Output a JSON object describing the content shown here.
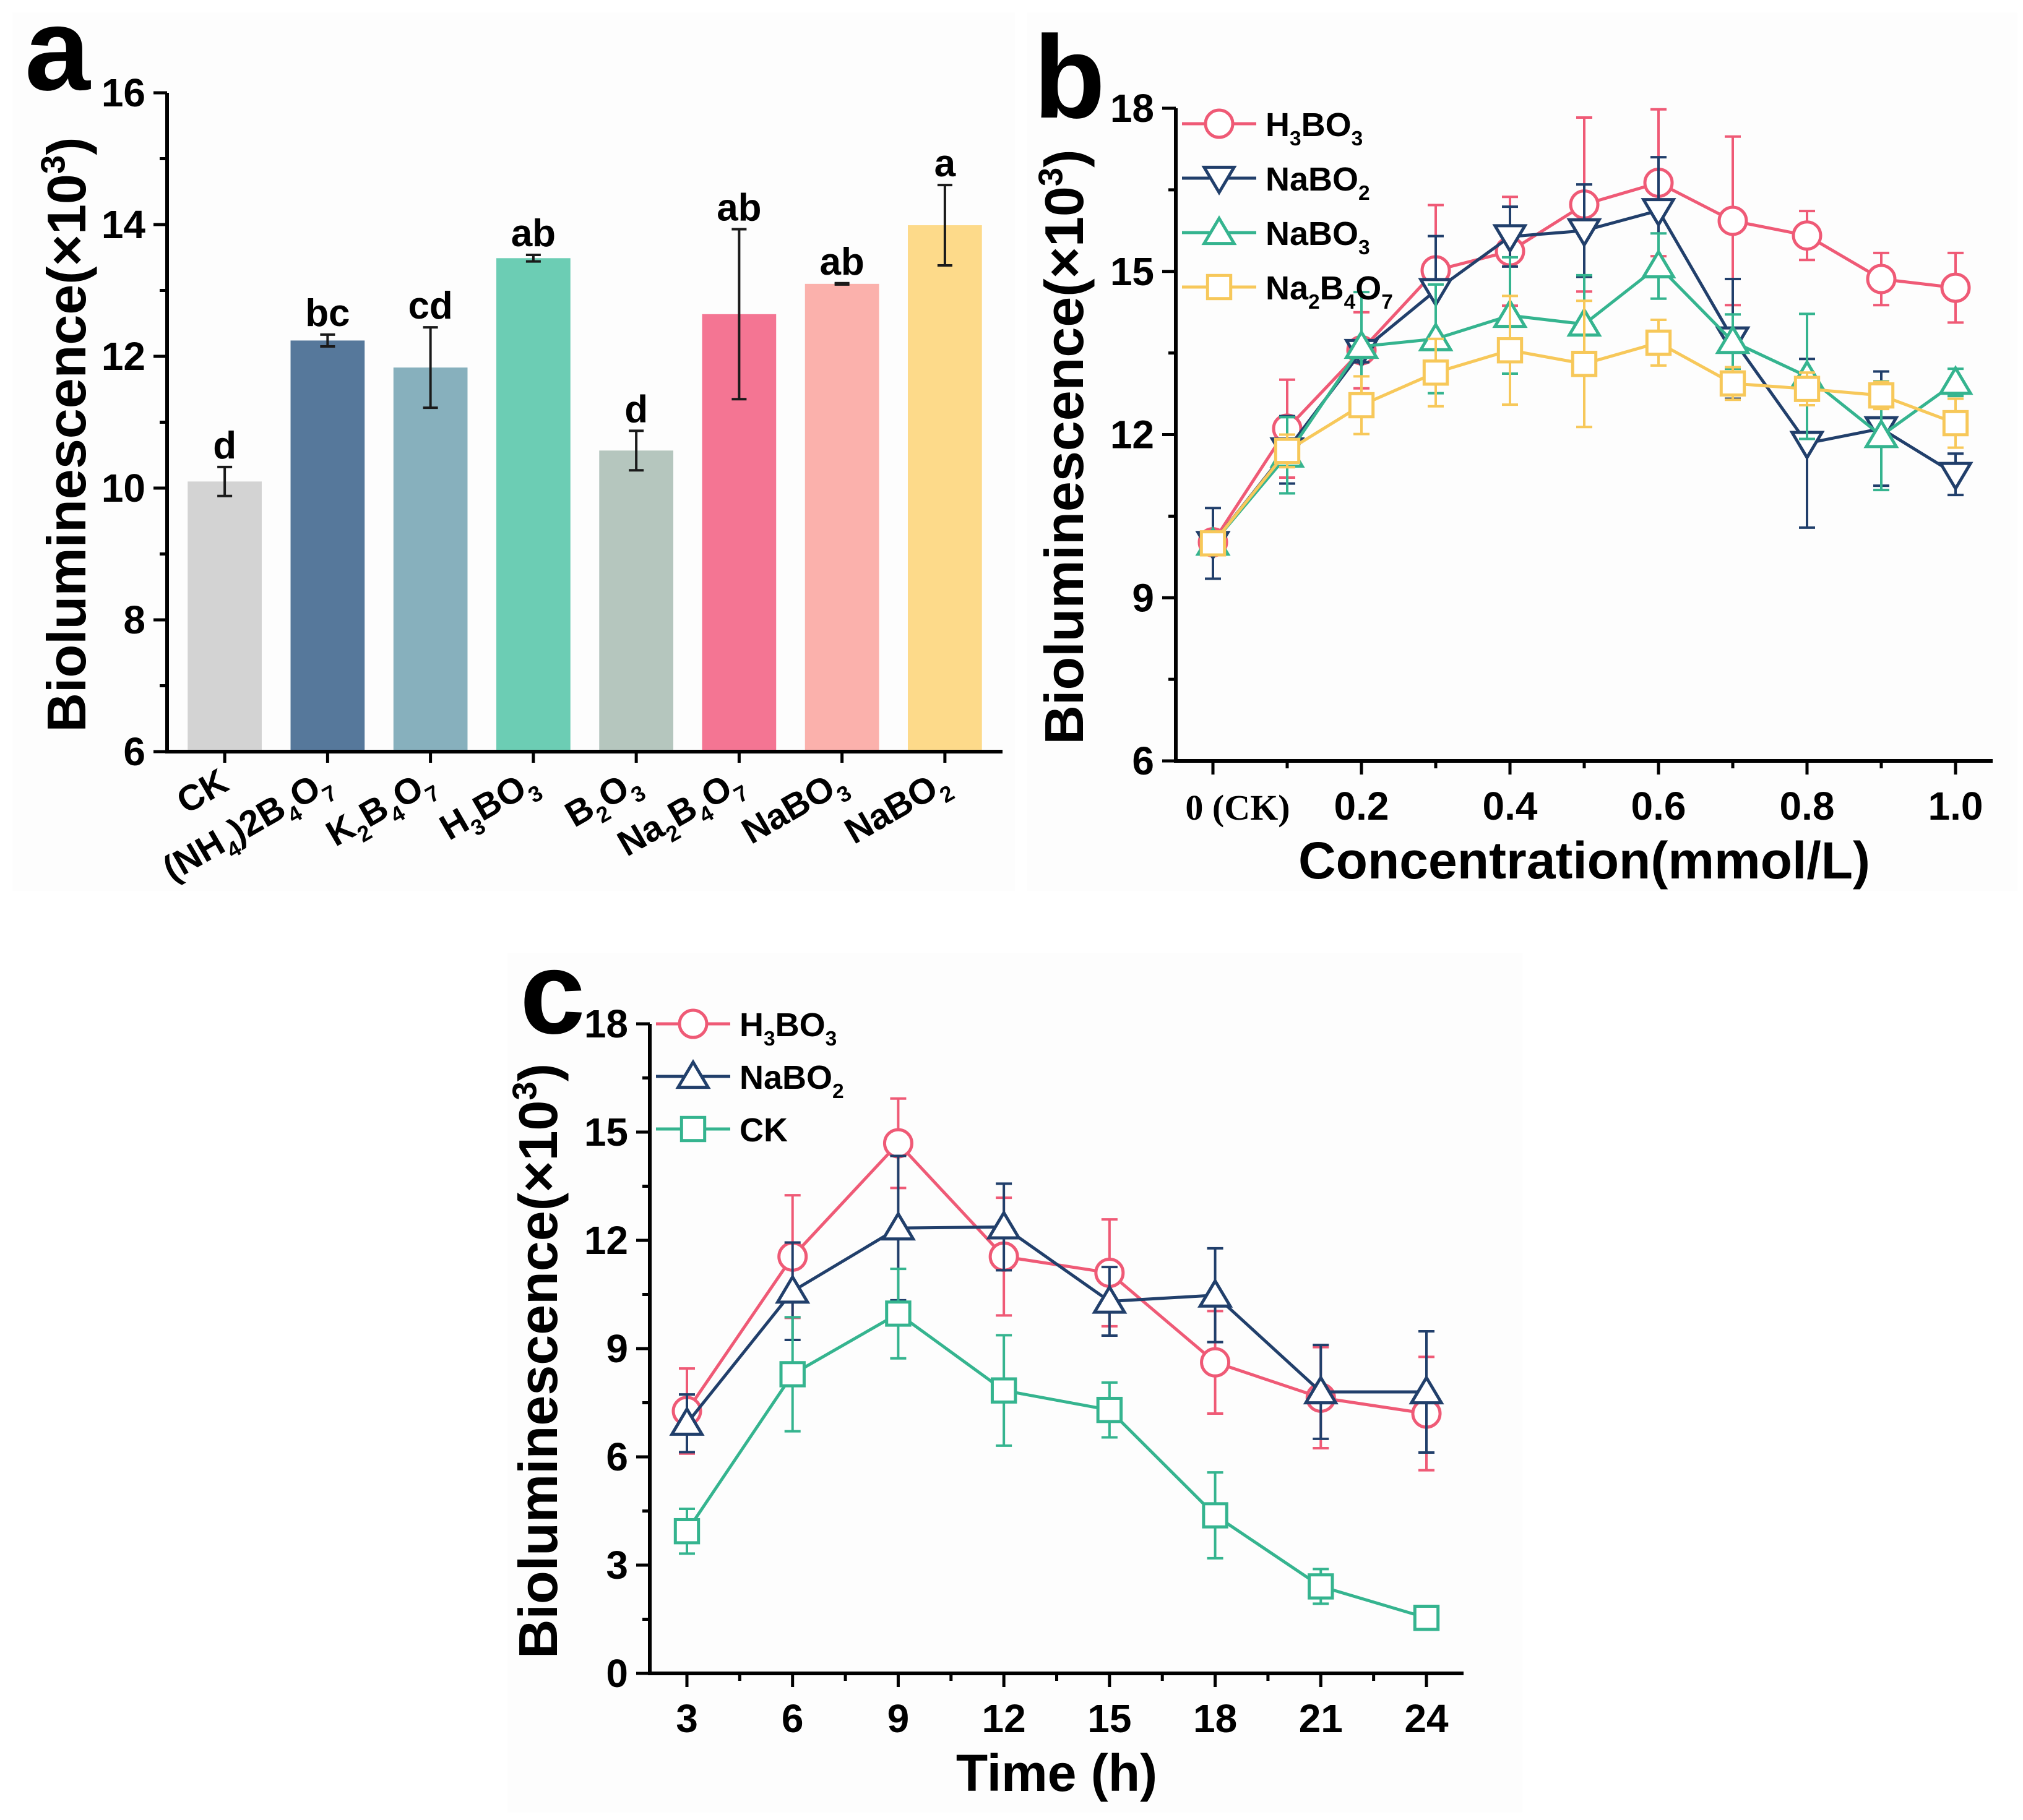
{
  "colors": {
    "h3bo3": "#ef5a76",
    "nabo2": "#213f6b",
    "nabo3": "#35b48f",
    "na2b4o7": "#f7c85a",
    "axis": "#000000"
  },
  "chart_data": [
    {
      "id": "a",
      "panel_label": "a",
      "type": "bar",
      "title": "",
      "xlabel": "",
      "ylabel": "Bioluminescence(×10³)",
      "ylim": [
        6,
        16
      ],
      "yticks": [
        6,
        8,
        10,
        12,
        14,
        16
      ],
      "grid": false,
      "categories": [
        "CK",
        "(NH₄)2B₄O₇",
        "K₂B₄O₇",
        "H₃BO₃",
        "B₂O₃",
        "Na₂B₄O₇",
        "NaBO₃",
        "NaBO₂"
      ],
      "values": [
        10.1,
        12.24,
        11.83,
        13.49,
        10.57,
        12.64,
        13.1,
        13.99
      ],
      "errors": [
        0.22,
        0.09,
        0.61,
        0.05,
        0.3,
        1.29,
        0.01,
        0.61
      ],
      "significance_letters": [
        "d",
        "bc",
        "cd",
        "ab",
        "d",
        "ab",
        "ab",
        "a"
      ],
      "bar_colors": [
        "#d3d3d3",
        "#56789b",
        "#87b0bd",
        "#6ccdb4",
        "#b5c6be",
        "#f47593",
        "#fbb1ac",
        "#fdda8a"
      ]
    },
    {
      "id": "b",
      "panel_label": "b",
      "type": "line",
      "title": "",
      "xlabel": "Concentration(mmol/L)",
      "ylabel": "Bioluminescence(×10³)",
      "ylim": [
        6,
        18
      ],
      "xlim": [
        0,
        1.0
      ],
      "yticks": [
        6,
        9,
        12,
        15,
        18
      ],
      "xticks": [
        0,
        0.2,
        0.4,
        0.6,
        0.8,
        1.0
      ],
      "xtick_labels": [
        "0 (CK)",
        "0.2",
        "0.4",
        "0.6",
        "0.8",
        "1.0"
      ],
      "grid": false,
      "legend_position": "top-left",
      "x": [
        0,
        0.1,
        0.2,
        0.3,
        0.4,
        0.5,
        0.6,
        0.7,
        0.8,
        0.9,
        1.0
      ],
      "series": [
        {
          "name": "H₃BO₃",
          "marker": "circle",
          "color_key": "h3bo3",
          "values": [
            10.02,
            12.11,
            13.55,
            15.02,
            15.37,
            16.23,
            16.63,
            15.93,
            15.66,
            14.86,
            14.7
          ],
          "errors": [
            0.15,
            0.9,
            0.7,
            1.2,
            1.0,
            1.6,
            1.35,
            1.55,
            0.45,
            0.48,
            0.64
          ]
        },
        {
          "name": "NaBO₂",
          "marker": "triangle-down",
          "color_key": "nabo2",
          "values": [
            10.0,
            11.72,
            13.53,
            14.65,
            15.64,
            15.75,
            16.12,
            13.76,
            11.84,
            12.11,
            11.27
          ],
          "errors": [
            0.65,
            0.62,
            0.2,
            1.0,
            0.55,
            0.85,
            0.98,
            1.1,
            1.55,
            1.05,
            0.38
          ]
        },
        {
          "name": "NaBO₃",
          "marker": "triangle-up",
          "color_key": "nabo3",
          "values": [
            10.0,
            11.62,
            13.62,
            13.76,
            14.19,
            14.03,
            15.1,
            13.71,
            13.07,
            11.98,
            12.96
          ],
          "errors": [
            0.2,
            0.7,
            1.0,
            1.0,
            1.07,
            0.9,
            0.6,
            0.5,
            1.15,
            1.0,
            0.25
          ]
        },
        {
          "name": "Na₂B₄O₇",
          "marker": "square",
          "color_key": "na2b4o7",
          "values": [
            10.0,
            11.7,
            12.54,
            13.14,
            13.55,
            13.3,
            13.69,
            12.94,
            12.84,
            12.72,
            12.21
          ],
          "errors": [
            0.15,
            0.3,
            0.53,
            0.62,
            1.0,
            1.16,
            0.42,
            0.3,
            0.3,
            0.25,
            0.45
          ]
        }
      ]
    },
    {
      "id": "c",
      "panel_label": "c",
      "type": "line",
      "title": "",
      "xlabel": "Time (h)",
      "ylabel": "Bioluminescence(×10³)",
      "ylim": [
        0,
        18
      ],
      "xlim": [
        3,
        24
      ],
      "yticks": [
        0,
        3,
        6,
        9,
        12,
        15,
        18
      ],
      "xticks": [
        3,
        6,
        9,
        12,
        15,
        18,
        21,
        24
      ],
      "xtick_labels": [
        "3",
        "6",
        "9",
        "12",
        "15",
        "18",
        "21",
        "24"
      ],
      "grid": false,
      "legend_position": "top-left",
      "x": [
        3,
        6,
        9,
        12,
        15,
        18,
        21,
        24
      ],
      "series": [
        {
          "name": "H₃BO₃",
          "marker": "circle",
          "color_key": "h3bo3",
          "values": [
            7.27,
            11.55,
            14.69,
            11.55,
            11.1,
            8.62,
            7.64,
            7.2
          ],
          "errors": [
            1.18,
            1.7,
            1.24,
            1.63,
            1.48,
            1.42,
            1.4,
            1.57
          ]
        },
        {
          "name": "NaBO₂",
          "marker": "triangle-up",
          "color_key": "nabo2",
          "values": [
            6.93,
            10.59,
            12.34,
            12.37,
            10.31,
            10.48,
            7.8,
            7.8
          ],
          "errors": [
            0.8,
            1.35,
            2.0,
            1.2,
            0.95,
            1.3,
            1.3,
            1.68
          ]
        },
        {
          "name": "CK",
          "marker": "square",
          "color_key": "nabo3",
          "values": [
            3.94,
            8.29,
            9.97,
            7.84,
            7.3,
            4.38,
            2.41,
            1.54
          ],
          "errors": [
            0.62,
            1.58,
            1.24,
            1.53,
            0.76,
            1.19,
            0.48,
            0.1
          ]
        }
      ]
    }
  ]
}
